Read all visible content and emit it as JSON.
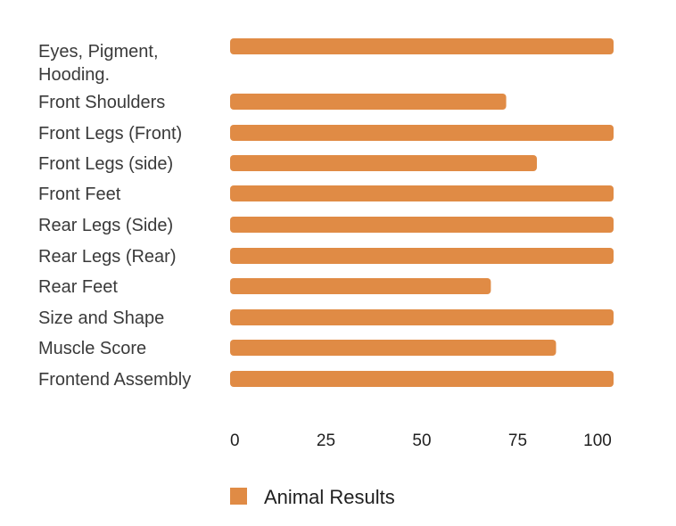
{
  "chart_data": {
    "type": "bar",
    "orientation": "horizontal",
    "categories": [
      [
        "Eyes, Pigment,",
        "Hooding."
      ],
      [
        "Front Shoulders"
      ],
      [
        "Front Legs (Front)"
      ],
      [
        "Front Legs (side)"
      ],
      [
        "Front Feet"
      ],
      [
        "Rear Legs (Side)"
      ],
      [
        "Rear Legs (Rear)"
      ],
      [
        "Rear Feet"
      ],
      [
        "Size and Shape"
      ],
      [
        "Muscle Score"
      ],
      [
        "Frontend Assembly"
      ]
    ],
    "series": [
      {
        "name": "Animal Results",
        "color": "#E08B45",
        "values": [
          100,
          72,
          100,
          80,
          100,
          100,
          100,
          68,
          100,
          85,
          100
        ]
      }
    ],
    "xlim": [
      0,
      100
    ],
    "xticks": [
      "0",
      "25",
      "50",
      "75",
      "100"
    ],
    "grid": false,
    "legend_position": "bottom"
  }
}
